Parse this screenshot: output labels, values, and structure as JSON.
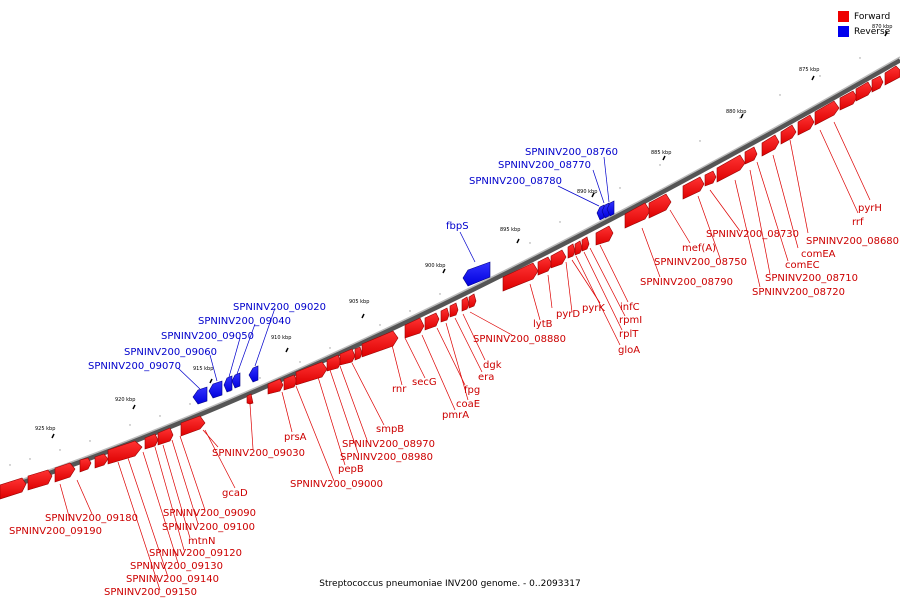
{
  "colors": {
    "forward": "#ee0000",
    "forward_dark": "#990000",
    "reverse": "#0000ee",
    "reverse_dark": "#000088",
    "backbone": "#777777"
  },
  "legend": {
    "forward_label": "Forward",
    "reverse_label": "Reverse"
  },
  "caption": "Streptococcus pneumoniae INV200 genome. - 0..2093317",
  "ticks": [
    "870 kbp",
    "875 kbp",
    "880 kbp",
    "885 kbp",
    "890 kbp",
    "895 kbp",
    "900 kbp",
    "905 kbp",
    "910 kbp",
    "915 kbp",
    "920 kbp",
    "925 kbp"
  ],
  "labels_forward": [
    "pyrH",
    "rrf",
    "SPNINV200_08680",
    "comEA",
    "comEC",
    "SPNINV200_08710",
    "SPNINV200_08720",
    "SPNINV200_08730",
    "SPNINV200_08750",
    "mef(A)",
    "SPNINV200_08790",
    "infC",
    "rpmI",
    "rplT",
    "gloA",
    "pyrK",
    "pyrD",
    "lytB",
    "SPNINV200_08880",
    "dgk",
    "era",
    "coaE",
    "fpg",
    "pmrA",
    "secG",
    "rnr",
    "smpB",
    "SPNINV200_08970",
    "SPNINV200_08980",
    "pepB",
    "SPNINV200_09000",
    "prsA",
    "SPNINV200_09030",
    "gcaD",
    "SPNINV200_09090",
    "SPNINV200_09100",
    "mtnN",
    "SPNINV200_09120",
    "SPNINV200_09130",
    "SPNINV200_09140",
    "SPNINV200_09150",
    "SPNINV200_09180",
    "SPNINV200_09190"
  ],
  "labels_reverse": [
    "SPNINV200_08760",
    "SPNINV200_08770",
    "SPNINV200_08780",
    "fbpS",
    "SPNINV200_09020",
    "SPNINV200_09040",
    "SPNINV200_09050",
    "SPNINV200_09060",
    "SPNINV200_09070"
  ]
}
